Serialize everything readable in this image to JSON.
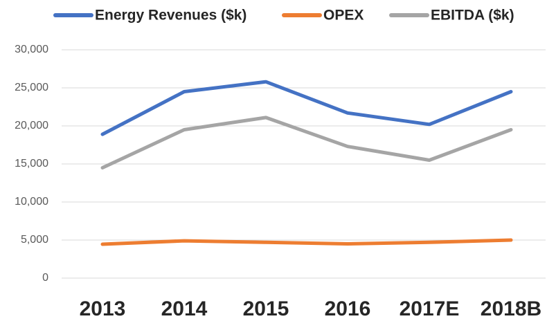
{
  "chart_data": {
    "type": "line",
    "categories": [
      "2013",
      "2014",
      "2015",
      "2016",
      "2017E",
      "2018B"
    ],
    "series": [
      {
        "name": "Energy Revenues ($k)",
        "color": "#4472c4",
        "values": [
          18900,
          24500,
          25800,
          21700,
          20200,
          24500
        ]
      },
      {
        "name": "OPEX",
        "color": "#ed7d31",
        "values": [
          4450,
          4900,
          4700,
          4500,
          4700,
          5000
        ]
      },
      {
        "name": "EBITDA ($k)",
        "color": "#a5a5a5",
        "values": [
          14500,
          19500,
          21100,
          17300,
          15500,
          19500
        ]
      }
    ],
    "ylim": [
      0,
      30000
    ],
    "yticks": [
      0,
      {
        "value": 5000,
        "label": "5,000"
      },
      {
        "value": 10000,
        "label": "10,000"
      },
      {
        "value": 15000,
        "label": "15,000"
      },
      {
        "value": 20000,
        "label": "20,000"
      },
      {
        "value": 25000,
        "label": "25,000"
      },
      {
        "value": 30000,
        "label": "30,000"
      }
    ],
    "grid": true,
    "legend": "top"
  }
}
